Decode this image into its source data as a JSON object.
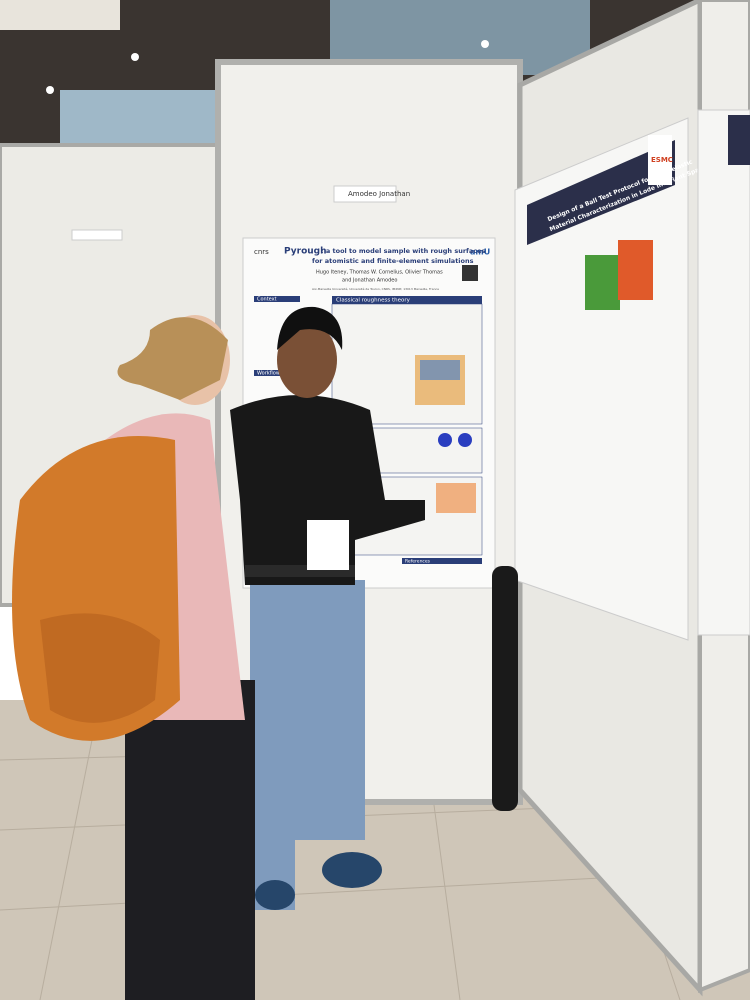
{
  "name_tag": "Amodeo Jonathan",
  "poster_left": {
    "title": "Pyrough",
    "subtitle_1": ": a tool to model sample with rough surfaces",
    "subtitle_2": "for atomistic and finite-element simulations",
    "authors_1": "Hugo Iteney, Thomas W. Cornelius, Olivier Thomas",
    "authors_2": "and Jonathan Amodeo",
    "affiliation": "Aix-Marseille Université, Université de Toulon, CNRS, IM2NP, 13013 Marseille, France",
    "logo_left": "cnrs",
    "logo_right": "amU",
    "sections": [
      "Context",
      "Workflow",
      "Classical roughness theory",
      "References"
    ]
  },
  "poster_right": {
    "title_1": "Design of a Ball Test Protocol for Hyperelastic",
    "title_2": "Material Characterization in Lode Invariant Space",
    "logo": "ESMC"
  }
}
